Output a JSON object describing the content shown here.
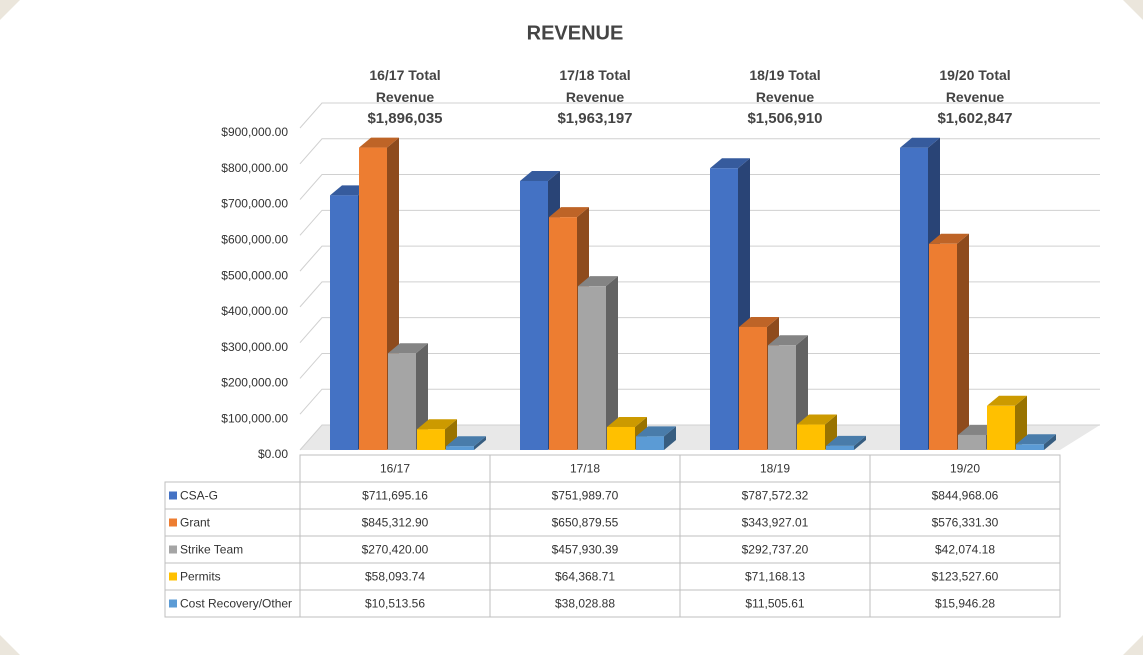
{
  "chart_data": {
    "type": "bar3d",
    "title": "REVENUE",
    "categories": [
      "16/17",
      "17/18",
      "18/19",
      "19/20"
    ],
    "series": [
      {
        "name": "CSA-G",
        "color": "#4472c4",
        "values": [
          711695.16,
          751989.7,
          787572.32,
          844968.06
        ],
        "value_labels": [
          "$711,695.16",
          "$751,989.70",
          "$787,572.32",
          "$844,968.06"
        ]
      },
      {
        "name": "Grant",
        "color": "#ed7d31",
        "values": [
          845312.9,
          650879.55,
          343927.01,
          576331.3
        ],
        "value_labels": [
          "$845,312.90",
          "$650,879.55",
          "$343,927.01",
          "$576,331.30"
        ]
      },
      {
        "name": "Strike Team",
        "color": "#a5a5a5",
        "values": [
          270420.0,
          457930.39,
          292737.2,
          42074.18
        ],
        "value_labels": [
          "$270,420.00",
          "$457,930.39",
          "$292,737.20",
          "$42,074.18"
        ]
      },
      {
        "name": "Permits",
        "color": "#ffc000",
        "values": [
          58093.74,
          64368.71,
          71168.13,
          123527.6
        ],
        "value_labels": [
          "$58,093.74",
          "$64,368.71",
          "$71,168.13",
          "$123,527.60"
        ]
      },
      {
        "name": "Cost Recovery/Other",
        "color": "#5b9bd5",
        "values": [
          10513.56,
          38028.88,
          11505.61,
          15946.28
        ],
        "value_labels": [
          "$10,513.56",
          "$38,028.88",
          "$11,505.61",
          "$15,946.28"
        ]
      }
    ],
    "annotations": [
      {
        "text": "16/17 Total Revenue",
        "value": "$1,896,035"
      },
      {
        "text": "17/18 Total Revenue",
        "value": "$1,963,197"
      },
      {
        "text": "18/19 Total Revenue",
        "value": "$1,506,910"
      },
      {
        "text": "19/20 Total Revenue",
        "value": "$1,602,847"
      }
    ],
    "ylim": [
      0,
      900000
    ],
    "yticks": [
      {
        "value": 0,
        "label": "$0.00"
      },
      {
        "value": 100000,
        "label": "$100,000.00"
      },
      {
        "value": 200000,
        "label": "$200,000.00"
      },
      {
        "value": 300000,
        "label": "$300,000.00"
      },
      {
        "value": 400000,
        "label": "$400,000.00"
      },
      {
        "value": 500000,
        "label": "$500,000.00"
      },
      {
        "value": 600000,
        "label": "$600,000.00"
      },
      {
        "value": 700000,
        "label": "$700,000.00"
      },
      {
        "value": 800000,
        "label": "$800,000.00"
      },
      {
        "value": 900000,
        "label": "$900,000.00"
      }
    ],
    "grid": true
  }
}
